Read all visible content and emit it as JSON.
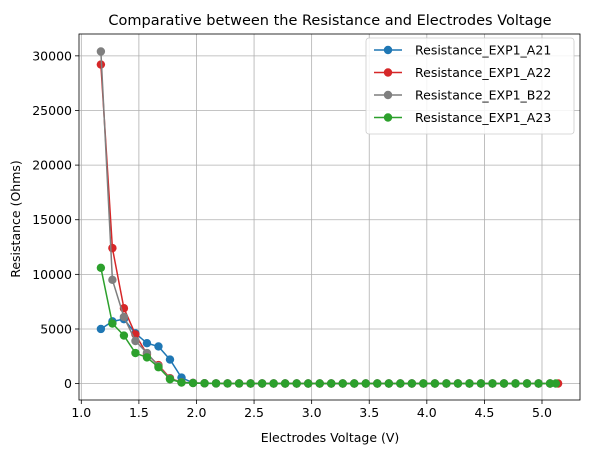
{
  "chart_data": {
    "type": "line",
    "title": "Comparative between the Resistance and Electrodes Voltage",
    "xlabel": "Electrodes Voltage (V)",
    "ylabel": "Resistance (Ohms)",
    "xlim": [
      0.98,
      5.33
    ],
    "ylim": [
      -1500,
      32000
    ],
    "xticks": [
      1.0,
      1.5,
      2.0,
      2.5,
      3.0,
      3.5,
      4.0,
      4.5,
      5.0
    ],
    "xtick_labels": [
      "1.0",
      "1.5",
      "2.0",
      "2.5",
      "3.0",
      "3.5",
      "4.0",
      "4.5",
      "5.0"
    ],
    "yticks": [
      0,
      5000,
      10000,
      15000,
      20000,
      25000,
      30000
    ],
    "ytick_labels": [
      "0",
      "5000",
      "10000",
      "15000",
      "20000",
      "25000",
      "30000"
    ],
    "grid": true,
    "legend_position": "top-right",
    "series": [
      {
        "name": "Resistance_EXP1_A21",
        "color": "#1f77b4",
        "x": [
          1.17,
          1.27,
          1.37,
          1.47,
          1.57,
          1.67,
          1.77,
          1.87,
          1.97,
          2.07,
          2.17,
          2.27,
          2.37,
          2.47,
          2.57,
          2.67,
          2.77,
          2.87,
          2.97,
          3.07,
          3.17,
          3.27,
          3.37,
          3.47,
          3.57,
          3.67,
          3.77,
          3.87,
          3.97,
          4.07,
          4.17,
          4.27,
          4.37,
          4.47,
          4.57,
          4.67,
          4.77,
          4.87,
          4.97,
          5.07
        ],
        "y": [
          5000,
          5700,
          5900,
          4600,
          3700,
          3400,
          2200,
          550,
          60,
          30,
          20,
          15,
          12,
          10,
          10,
          10,
          10,
          10,
          10,
          10,
          10,
          10,
          10,
          10,
          10,
          10,
          10,
          10,
          10,
          10,
          10,
          10,
          10,
          10,
          10,
          10,
          10,
          10,
          10,
          10
        ]
      },
      {
        "name": "Resistance_EXP1_A22",
        "color": "#d62728",
        "x": [
          1.17,
          1.27,
          1.37,
          1.47,
          1.57,
          1.67,
          1.77,
          1.87,
          1.97,
          2.07,
          2.17,
          2.27,
          2.37,
          2.47,
          2.57,
          2.67,
          2.77,
          2.87,
          2.97,
          3.07,
          3.17,
          3.27,
          3.37,
          3.47,
          3.57,
          3.67,
          3.77,
          3.87,
          3.97,
          4.07,
          4.17,
          4.27,
          4.37,
          4.47,
          4.57,
          4.67,
          4.77,
          4.87,
          4.97,
          5.07,
          5.14
        ],
        "y": [
          29200,
          12400,
          6900,
          4500,
          2700,
          1700,
          500,
          120,
          60,
          30,
          20,
          15,
          12,
          10,
          10,
          10,
          10,
          10,
          10,
          10,
          10,
          10,
          10,
          10,
          10,
          10,
          10,
          10,
          10,
          10,
          10,
          10,
          10,
          10,
          10,
          10,
          10,
          10,
          10,
          10,
          10
        ]
      },
      {
        "name": "Resistance_EXP1_B22",
        "color": "#7f7f7f",
        "x": [
          1.17,
          1.27,
          1.37,
          1.47,
          1.57,
          1.67,
          1.77,
          1.87,
          1.97,
          2.07,
          2.17,
          2.27,
          2.37,
          2.47,
          2.57,
          2.67,
          2.77,
          2.87,
          2.97,
          3.07,
          3.17,
          3.27,
          3.37,
          3.47,
          3.57,
          3.67,
          3.77,
          3.87,
          3.97,
          4.07,
          4.17,
          4.27,
          4.37,
          4.47,
          4.57,
          4.67,
          4.77,
          4.87,
          4.97,
          5.07
        ],
        "y": [
          30400,
          9500,
          6100,
          3900,
          2800,
          1600,
          450,
          120,
          60,
          30,
          20,
          15,
          12,
          10,
          10,
          10,
          10,
          10,
          10,
          10,
          10,
          10,
          10,
          10,
          10,
          10,
          10,
          10,
          10,
          10,
          10,
          10,
          10,
          10,
          10,
          10,
          10,
          10,
          10,
          10
        ]
      },
      {
        "name": "Resistance_EXP1_A23",
        "color": "#2ca02c",
        "x": [
          1.17,
          1.27,
          1.37,
          1.47,
          1.57,
          1.67,
          1.77,
          1.87,
          1.97,
          2.07,
          2.17,
          2.27,
          2.37,
          2.47,
          2.57,
          2.67,
          2.77,
          2.87,
          2.97,
          3.07,
          3.17,
          3.27,
          3.37,
          3.47,
          3.57,
          3.67,
          3.77,
          3.87,
          3.97,
          4.07,
          4.17,
          4.27,
          4.37,
          4.47,
          4.57,
          4.67,
          4.77,
          4.87,
          4.97,
          5.07,
          5.12
        ],
        "y": [
          10600,
          5500,
          4400,
          2800,
          2400,
          1500,
          400,
          100,
          50,
          30,
          20,
          15,
          12,
          10,
          10,
          10,
          10,
          10,
          10,
          10,
          10,
          10,
          10,
          10,
          10,
          10,
          10,
          10,
          10,
          10,
          10,
          10,
          10,
          10,
          10,
          10,
          10,
          10,
          10,
          10,
          10
        ]
      }
    ]
  }
}
